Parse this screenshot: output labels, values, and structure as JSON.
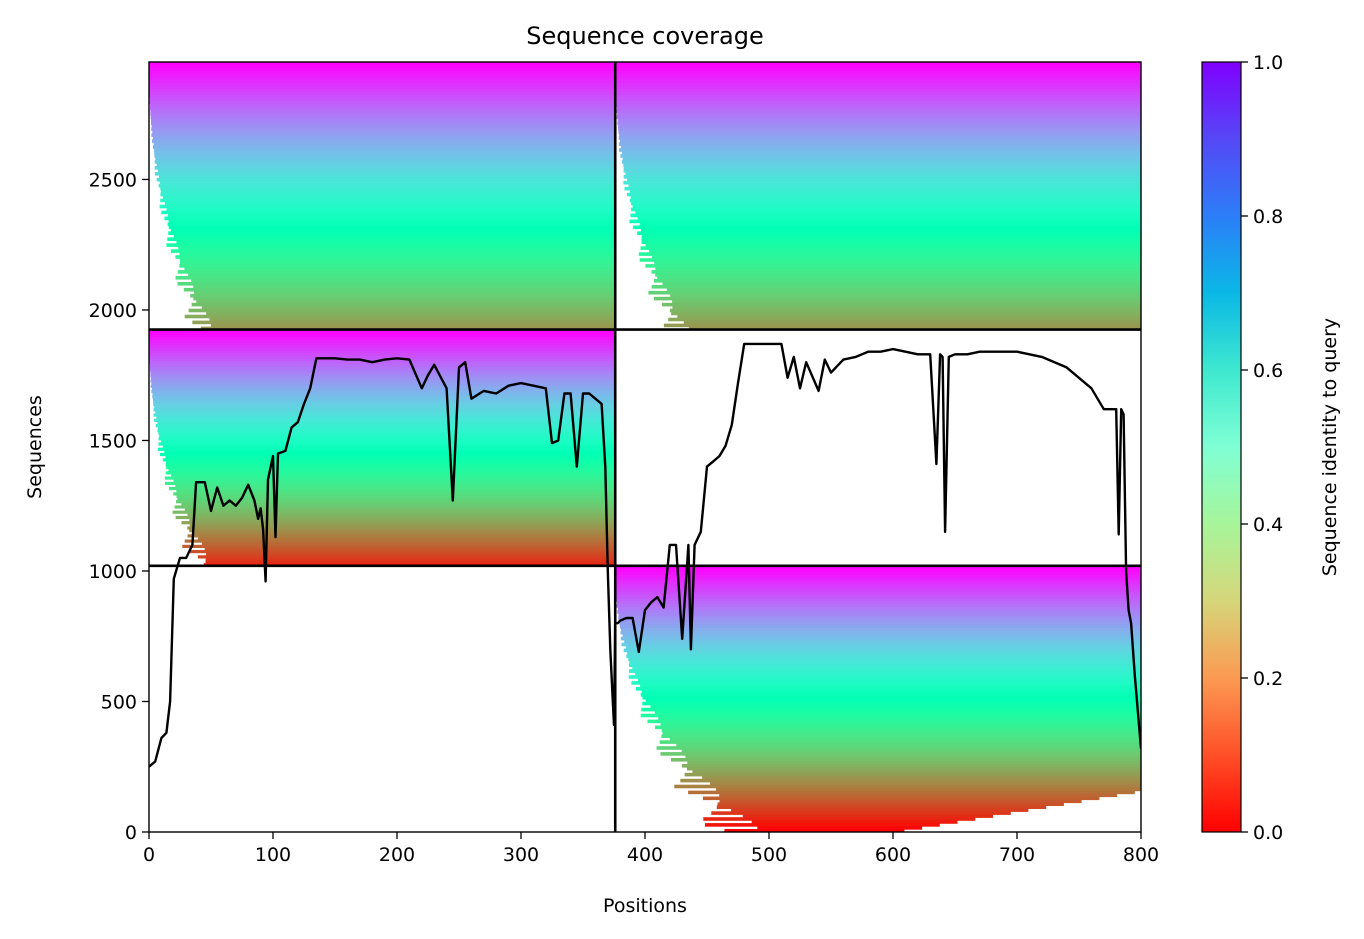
{
  "chart_data": {
    "type": "heatmap",
    "title": "Sequence coverage",
    "xlabel": "Positions",
    "ylabel": "Sequences",
    "xlim": [
      0,
      800
    ],
    "ylim": [
      0,
      2950
    ],
    "x_ticks": [
      0,
      100,
      200,
      300,
      400,
      500,
      600,
      700,
      800
    ],
    "y_ticks": [
      0,
      500,
      1000,
      1500,
      2000,
      2500
    ],
    "colorbar": {
      "label": "Sequence identity to query",
      "range": [
        0,
        1
      ],
      "ticks": [
        0.0,
        0.2,
        0.4,
        0.6,
        0.8,
        1.0
      ],
      "colormap": "rainbow_r"
    },
    "dividers": {
      "vertical_x": 376,
      "horizontal_y": [
        1020,
        1925
      ]
    },
    "blocks": [
      {
        "x": [
          0,
          376
        ],
        "y": [
          1925,
          2950
        ],
        "min_identity": 0.2
      },
      {
        "x": [
          376,
          800
        ],
        "y": [
          1925,
          2950
        ],
        "min_identity": 0.2
      },
      {
        "x": [
          0,
          376
        ],
        "y": [
          1020,
          1925
        ],
        "min_identity": 0.05
      },
      {
        "x": [
          376,
          800
        ],
        "y": [
          0,
          1020
        ],
        "min_identity": 0.0
      }
    ],
    "coverage_line": {
      "x": [
        0,
        5,
        10,
        14,
        17,
        20,
        25,
        30,
        35,
        38,
        45,
        50,
        55,
        60,
        65,
        70,
        75,
        80,
        85,
        88,
        90,
        92,
        94,
        96,
        100,
        102,
        104,
        110,
        115,
        120,
        125,
        130,
        135,
        140,
        150,
        160,
        170,
        180,
        190,
        200,
        210,
        220,
        225,
        230,
        240,
        245,
        250,
        255,
        260,
        270,
        280,
        290,
        300,
        310,
        320,
        325,
        330,
        335,
        340,
        345,
        350,
        355,
        360,
        365,
        368,
        370,
        372,
        374,
        375,
        376,
        378,
        380,
        385,
        390,
        395,
        400,
        405,
        410,
        415,
        420,
        425,
        430,
        435,
        437,
        440,
        445,
        450,
        455,
        460,
        465,
        470,
        475,
        480,
        490,
        500,
        510,
        515,
        520,
        525,
        530,
        540,
        545,
        550,
        560,
        570,
        580,
        590,
        600,
        610,
        620,
        630,
        635,
        638,
        640,
        642,
        645,
        650,
        660,
        670,
        680,
        700,
        720,
        740,
        760,
        770,
        780,
        782,
        784,
        786,
        788,
        790,
        792,
        795,
        800
      ],
      "y": [
        250,
        270,
        360,
        380,
        500,
        970,
        1050,
        1050,
        1100,
        1340,
        1340,
        1230,
        1320,
        1250,
        1270,
        1250,
        1280,
        1330,
        1270,
        1200,
        1240,
        1160,
        960,
        1350,
        1440,
        1130,
        1450,
        1460,
        1550,
        1570,
        1640,
        1700,
        1815,
        1815,
        1815,
        1810,
        1810,
        1800,
        1810,
        1815,
        1810,
        1700,
        1750,
        1790,
        1700,
        1270,
        1780,
        1800,
        1660,
        1690,
        1680,
        1710,
        1720,
        1710,
        1700,
        1490,
        1500,
        1680,
        1680,
        1400,
        1680,
        1680,
        1660,
        1640,
        1400,
        1000,
        700,
        500,
        410,
        800,
        800,
        810,
        820,
        820,
        690,
        850,
        880,
        900,
        860,
        1100,
        1100,
        740,
        1100,
        700,
        1100,
        1150,
        1400,
        1420,
        1440,
        1480,
        1560,
        1720,
        1870,
        1870,
        1870,
        1870,
        1740,
        1820,
        1700,
        1800,
        1690,
        1810,
        1760,
        1810,
        1820,
        1840,
        1840,
        1850,
        1840,
        1830,
        1830,
        1410,
        1830,
        1820,
        1150,
        1820,
        1830,
        1830,
        1840,
        1840,
        1840,
        1820,
        1780,
        1700,
        1620,
        1620,
        1140,
        1620,
        1600,
        1000,
        850,
        800,
        600,
        320
      ]
    }
  }
}
